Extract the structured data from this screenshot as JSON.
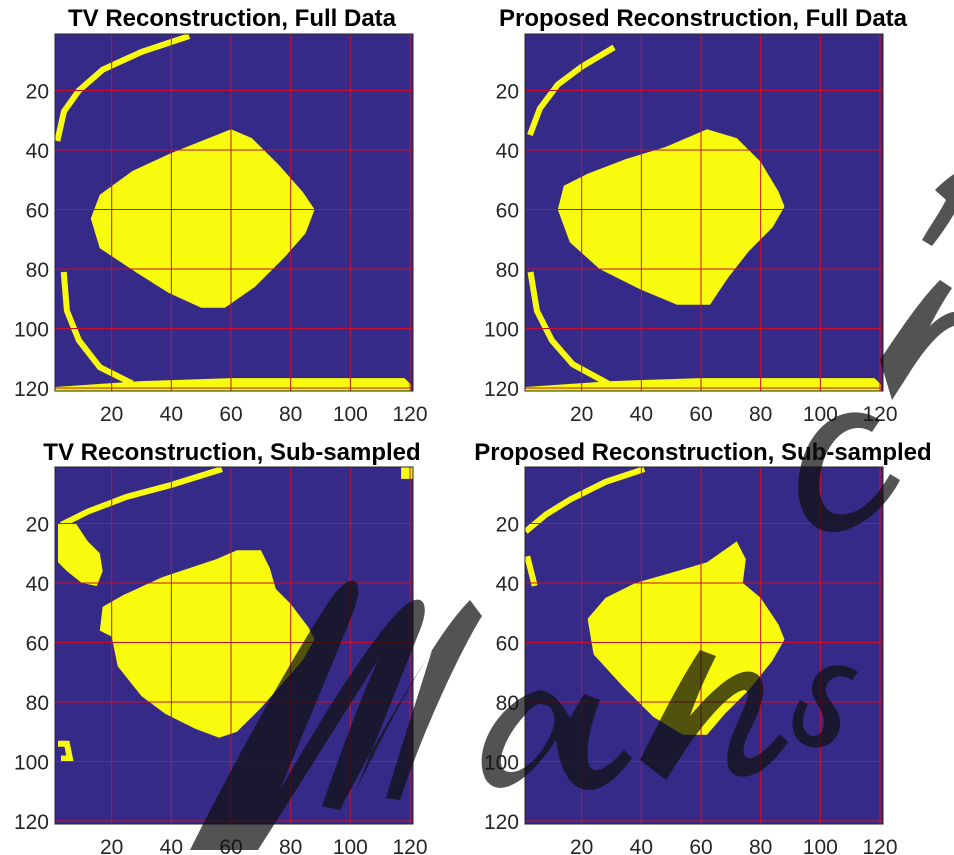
{
  "chart_data": [
    {
      "type": "heatmap",
      "title": "TV Reconstruction, Full Data",
      "xlim": [
        1,
        121
      ],
      "ylim": [
        1,
        121
      ],
      "y_reversed": true,
      "xticks": [
        20,
        40,
        60,
        80,
        100,
        120
      ],
      "yticks": [
        20,
        40,
        60,
        80,
        100,
        120
      ],
      "grid": true,
      "grid_color": "#c8102e",
      "colors": {
        "background": "#352a87",
        "region": "#f9fb0e"
      },
      "regions": [
        {
          "name": "central-blob",
          "outline": [
            [
              13,
              63
            ],
            [
              16,
              55
            ],
            [
              27,
              47
            ],
            [
              40,
              41
            ],
            [
              60,
              33
            ],
            [
              67,
              36
            ],
            [
              76,
              45
            ],
            [
              84,
              54
            ],
            [
              88,
              60
            ],
            [
              85,
              68
            ],
            [
              78,
              76
            ],
            [
              68,
              86
            ],
            [
              58,
              93
            ],
            [
              50,
              93
            ],
            [
              39,
              88
            ],
            [
              28,
              81
            ],
            [
              16,
              73
            ]
          ]
        }
      ],
      "arcs": [
        [
          [
            45,
            2
          ],
          [
            30,
            7
          ],
          [
            17,
            13
          ],
          [
            9,
            20
          ],
          [
            4,
            27
          ],
          [
            2,
            36
          ]
        ],
        [
          [
            4,
            82
          ],
          [
            5,
            94
          ],
          [
            9,
            104
          ],
          [
            16,
            113
          ],
          [
            26,
            118
          ]
        ],
        [
          [
            30,
            118
          ],
          [
            60,
            117
          ],
          [
            90,
            117
          ],
          [
            118,
            117
          ],
          [
            120,
            119
          ],
          [
            120,
            121
          ],
          [
            1,
            121
          ],
          [
            1,
            120
          ],
          [
            30,
            118
          ]
        ]
      ]
    },
    {
      "type": "heatmap",
      "title": "Proposed Reconstruction, Full Data",
      "xlim": [
        1,
        121
      ],
      "ylim": [
        1,
        121
      ],
      "y_reversed": true,
      "xticks": [
        20,
        40,
        60,
        80,
        100,
        120
      ],
      "yticks": [
        20,
        40,
        60,
        80,
        100,
        120
      ],
      "grid": true,
      "grid_color": "#c8102e",
      "colors": {
        "background": "#352a87",
        "region": "#f9fb0e"
      },
      "regions": [
        {
          "name": "central-blob",
          "outline": [
            [
              12,
              60
            ],
            [
              14,
              52
            ],
            [
              22,
              48
            ],
            [
              35,
              43
            ],
            [
              48,
              39
            ],
            [
              62,
              33
            ],
            [
              72,
              36
            ],
            [
              80,
              44
            ],
            [
              86,
              54
            ],
            [
              88,
              59
            ],
            [
              84,
              66
            ],
            [
              76,
              74
            ],
            [
              69,
              83
            ],
            [
              63,
              92
            ],
            [
              52,
              92
            ],
            [
              40,
              87
            ],
            [
              26,
              80
            ],
            [
              16,
              71
            ]
          ]
        }
      ],
      "arcs": [
        [
          [
            30,
            6
          ],
          [
            20,
            12
          ],
          [
            12,
            18
          ],
          [
            6,
            26
          ],
          [
            3,
            34
          ]
        ],
        [
          [
            3,
            82
          ],
          [
            5,
            94
          ],
          [
            10,
            104
          ],
          [
            17,
            112
          ],
          [
            28,
            118
          ]
        ],
        [
          [
            30,
            118
          ],
          [
            60,
            117
          ],
          [
            90,
            117
          ],
          [
            118,
            117
          ],
          [
            120,
            119
          ],
          [
            120,
            121
          ],
          [
            1,
            121
          ],
          [
            1,
            120
          ],
          [
            30,
            118
          ]
        ]
      ]
    },
    {
      "type": "heatmap",
      "title": "TV Reconstruction, Sub-sampled",
      "xlim": [
        1,
        121
      ],
      "ylim": [
        1,
        121
      ],
      "y_reversed": true,
      "xticks": [
        20,
        40,
        60,
        80,
        100,
        120
      ],
      "yticks": [
        20,
        40,
        60,
        80,
        100,
        120
      ],
      "grid": true,
      "grid_color": "#c8102e",
      "colors": {
        "background": "#352a87",
        "region": "#f9fb0e"
      },
      "regions": [
        {
          "name": "central-blob",
          "outline": [
            [
              16,
              56
            ],
            [
              17,
              48
            ],
            [
              24,
              44
            ],
            [
              37,
              38
            ],
            [
              55,
              32
            ],
            [
              62,
              29
            ],
            [
              70,
              29
            ],
            [
              73,
              35
            ],
            [
              75,
              42
            ],
            [
              80,
              47
            ],
            [
              86,
              55
            ],
            [
              88,
              59
            ],
            [
              84,
              66
            ],
            [
              77,
              74
            ],
            [
              70,
              82
            ],
            [
              62,
              90
            ],
            [
              56,
              92
            ],
            [
              48,
              89
            ],
            [
              38,
              84
            ],
            [
              30,
              78
            ],
            [
              22,
              68
            ],
            [
              20,
              58
            ]
          ]
        },
        {
          "name": "left-patch",
          "outline": [
            [
              2,
              20
            ],
            [
              8,
              20
            ],
            [
              12,
              26
            ],
            [
              16,
              30
            ],
            [
              17,
              36
            ],
            [
              15,
              41
            ],
            [
              10,
              40
            ],
            [
              5,
              36
            ],
            [
              2,
              33
            ]
          ]
        }
      ],
      "arcs": [
        [
          [
            56,
            2
          ],
          [
            40,
            7
          ],
          [
            25,
            11
          ],
          [
            12,
            16
          ],
          [
            4,
            20
          ]
        ],
        [
          [
            118,
            2
          ],
          [
            121,
            2
          ],
          [
            121,
            4
          ],
          [
            118,
            4
          ]
        ],
        [
          [
            3,
            94
          ],
          [
            5,
            94
          ],
          [
            6,
            99
          ],
          [
            4,
            99
          ]
        ]
      ]
    },
    {
      "type": "heatmap",
      "title": "Proposed Reconstruction, Sub-sampled",
      "xlim": [
        1,
        121
      ],
      "ylim": [
        1,
        121
      ],
      "y_reversed": true,
      "xticks": [
        20,
        40,
        60,
        80,
        100,
        120
      ],
      "yticks": [
        20,
        40,
        60,
        80,
        100,
        120
      ],
      "grid": true,
      "grid_color": "#c8102e",
      "colors": {
        "background": "#352a87",
        "region": "#f9fb0e"
      },
      "regions": [
        {
          "name": "central-blob",
          "outline": [
            [
              22,
              52
            ],
            [
              28,
              45
            ],
            [
              38,
              40
            ],
            [
              52,
              36
            ],
            [
              62,
              33
            ],
            [
              72,
              26
            ],
            [
              75,
              32
            ],
            [
              74,
              40
            ],
            [
              80,
              45
            ],
            [
              86,
              54
            ],
            [
              88,
              59
            ],
            [
              84,
              66
            ],
            [
              76,
              76
            ],
            [
              68,
              84
            ],
            [
              62,
              91
            ],
            [
              54,
              91
            ],
            [
              44,
              85
            ],
            [
              34,
              75
            ],
            [
              24,
              64
            ]
          ]
        }
      ],
      "arcs": [
        [
          [
            40,
            2
          ],
          [
            28,
            6
          ],
          [
            16,
            12
          ],
          [
            8,
            17
          ],
          [
            2,
            22
          ]
        ],
        [
          [
            2,
            32
          ],
          [
            4,
            40
          ]
        ]
      ]
    }
  ]
}
